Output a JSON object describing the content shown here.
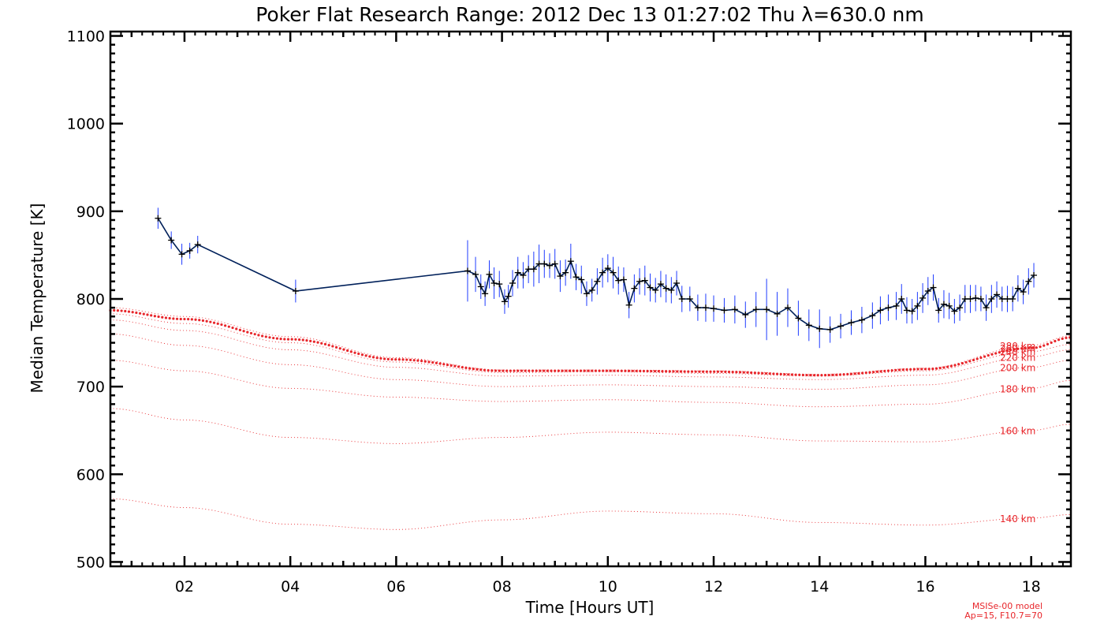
{
  "chart_data": {
    "type": "line",
    "title": "Poker Flat Research Range: 2012 Dec 13 01:27:02 Thu λ=630.0 nm",
    "xlabel": "Time [Hours UT]",
    "ylabel": "Median Temperature [K]",
    "xlim": [
      0.6,
      18.75
    ],
    "ylim": [
      495,
      1105
    ],
    "x_tick_values": [
      2,
      4,
      6,
      8,
      10,
      12,
      14,
      16,
      18
    ],
    "x_tick_labels": [
      "02",
      "04",
      "06",
      "08",
      "10",
      "12",
      "14",
      "16",
      "18"
    ],
    "y_tick_values": [
      500,
      600,
      700,
      800,
      900,
      1000,
      1100
    ],
    "y_tick_labels": [
      "500",
      "600",
      "700",
      "800",
      "900",
      "1000",
      "1100"
    ],
    "grid": false,
    "series": [
      {
        "color": "#00205a",
        "error_color": "#1f3cff",
        "x": [
          1.5,
          1.75,
          1.95,
          2.1,
          2.25,
          4.1,
          7.35,
          7.5,
          7.6,
          7.68,
          7.76,
          7.85,
          7.95,
          8.05,
          8.12,
          8.2,
          8.3,
          8.4,
          8.5,
          8.6,
          8.7,
          8.8,
          8.9,
          9.0,
          9.1,
          9.2,
          9.3,
          9.4,
          9.5,
          9.6,
          9.7,
          9.8,
          9.9,
          10.0,
          10.1,
          10.2,
          10.3,
          10.4,
          10.5,
          10.6,
          10.7,
          10.8,
          10.9,
          11.0,
          11.1,
          11.2,
          11.3,
          11.4,
          11.55,
          11.7,
          11.85,
          12.0,
          12.2,
          12.4,
          12.6,
          12.8,
          13.0,
          13.2,
          13.4,
          13.6,
          13.8,
          14.0,
          14.2,
          14.4,
          14.6,
          14.8,
          15.0,
          15.15,
          15.3,
          15.45,
          15.55,
          15.65,
          15.75,
          15.85,
          15.95,
          16.05,
          16.15,
          16.25,
          16.35,
          16.45,
          16.55,
          16.65,
          16.75,
          16.85,
          16.95,
          17.05,
          17.15,
          17.25,
          17.35,
          17.45,
          17.55,
          17.65,
          17.75,
          17.85,
          17.95,
          18.05
        ],
        "y": [
          892,
          867,
          851,
          855,
          862,
          809,
          832,
          828,
          814,
          806,
          828,
          818,
          817,
          797,
          803,
          818,
          830,
          827,
          834,
          834,
          840,
          840,
          838,
          840,
          826,
          830,
          843,
          825,
          822,
          806,
          810,
          820,
          830,
          835,
          830,
          821,
          822,
          793,
          812,
          820,
          821,
          813,
          810,
          817,
          812,
          810,
          818,
          800,
          800,
          790,
          790,
          789,
          787,
          788,
          782,
          788,
          788,
          783,
          790,
          778,
          770,
          766,
          765,
          769,
          773,
          776,
          781,
          787,
          790,
          792,
          800,
          787,
          786,
          792,
          801,
          809,
          813,
          787,
          794,
          792,
          786,
          790,
          800,
          800,
          801,
          800,
          790,
          800,
          805,
          800,
          800,
          800,
          812,
          808,
          820,
          827
        ],
        "errors": [
          12,
          10,
          12,
          9,
          10,
          13,
          35,
          20,
          14,
          14,
          16,
          18,
          15,
          14,
          13,
          15,
          18,
          15,
          16,
          20,
          22,
          16,
          14,
          17,
          18,
          15,
          20,
          15,
          16,
          14,
          13,
          15,
          17,
          16,
          18,
          16,
          14,
          15,
          16,
          15,
          17,
          16,
          14,
          15,
          16,
          15,
          14,
          15,
          14,
          15,
          16,
          15,
          14,
          16,
          15,
          20,
          35,
          25,
          22,
          20,
          18,
          22,
          15,
          14,
          14,
          15,
          15,
          16,
          15,
          16,
          17,
          15,
          14,
          16,
          17,
          16,
          15,
          14,
          16,
          15,
          14,
          15,
          16,
          16,
          15,
          14,
          15,
          16,
          15,
          14,
          15,
          14,
          15,
          14,
          15,
          14
        ]
      }
    ],
    "model_curves": [
      {
        "label": "140 km",
        "color": "#e8262b",
        "emphasized": false,
        "x": [
          0.6,
          2,
          4,
          6,
          8,
          10,
          12,
          14,
          16,
          18,
          18.75
        ],
        "y": [
          572,
          562,
          543,
          537,
          548,
          558,
          555,
          545,
          542,
          550,
          554
        ]
      },
      {
        "label": "160 km",
        "color": "#e8262b",
        "emphasized": false,
        "x": [
          0.6,
          2,
          4,
          6,
          8,
          10,
          12,
          14,
          16,
          18,
          18.75
        ],
        "y": [
          675,
          662,
          642,
          635,
          642,
          648,
          645,
          638,
          637,
          650,
          657
        ]
      },
      {
        "label": "180 km",
        "color": "#e8262b",
        "emphasized": false,
        "x": [
          0.6,
          2,
          4,
          6,
          8,
          10,
          12,
          14,
          16,
          18,
          18.75
        ],
        "y": [
          730,
          718,
          698,
          688,
          683,
          685,
          682,
          677,
          680,
          698,
          707
        ]
      },
      {
        "label": "200 km",
        "color": "#e8262b",
        "emphasized": false,
        "x": [
          0.6,
          2,
          4,
          6,
          8,
          10,
          12,
          14,
          16,
          18,
          18.75
        ],
        "y": [
          760,
          747,
          725,
          708,
          700,
          702,
          700,
          697,
          702,
          722,
          730
        ]
      },
      {
        "label": "220 km",
        "color": "#e8262b",
        "emphasized": false,
        "x": [
          0.6,
          2,
          4,
          6,
          8,
          10,
          12,
          14,
          16,
          18,
          18.75
        ],
        "y": [
          776,
          764,
          742,
          722,
          712,
          713,
          711,
          708,
          713,
          734,
          742
        ]
      },
      {
        "label": "240 km",
        "color": "#e8262b",
        "emphasized": false,
        "x": [
          0.6,
          2,
          4,
          6,
          8,
          10,
          12,
          14,
          16,
          18,
          18.75
        ],
        "y": [
          783,
          772,
          750,
          728,
          716,
          717,
          715,
          712,
          718,
          740,
          748
        ]
      },
      {
        "label": "260 km",
        "color": "#e8262b",
        "emphasized": true,
        "x": [
          0.6,
          2,
          4,
          6,
          8,
          10,
          12,
          14,
          16,
          18,
          18.75
        ],
        "y": [
          787,
          777,
          754,
          731,
          718,
          718,
          717,
          713,
          720,
          744,
          756
        ]
      },
      {
        "label": "280 km",
        "color": "#e8262b",
        "emphasized": false,
        "x": [
          0.6,
          2,
          4,
          6,
          8,
          10,
          12,
          14,
          16,
          18,
          18.75
        ],
        "y": [
          790,
          780,
          757,
          733,
          719,
          719,
          718,
          714,
          721,
          747,
          758
        ]
      }
    ],
    "annotations": [
      "MSISe-00 model",
      "Ap=15, F10.7=70"
    ]
  }
}
